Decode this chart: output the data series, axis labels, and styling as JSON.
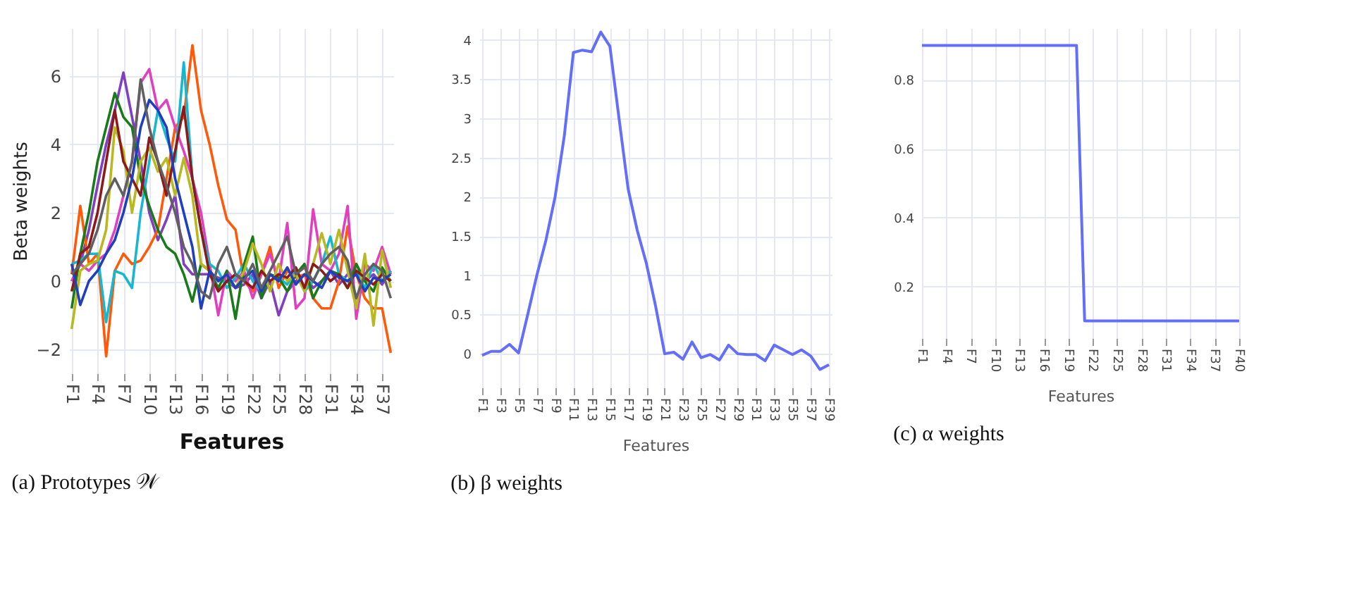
{
  "chart_data": [
    {
      "type": "line",
      "title": "(a) Prototypes 𝒲",
      "xlabel": "Features",
      "ylabel": "Beta weights",
      "grid": true,
      "ylim": [
        -2.7,
        7.4
      ],
      "yticks": [
        -2,
        0,
        2,
        4,
        6
      ],
      "categories": [
        "F1",
        null,
        null,
        "F4",
        null,
        null,
        "F7",
        null,
        null,
        "F10",
        null,
        null,
        "F13",
        null,
        null,
        "F16",
        null,
        null,
        "F19",
        null,
        null,
        "F22",
        null,
        null,
        "F25",
        null,
        null,
        "F28",
        null,
        null,
        "F31",
        null,
        null,
        "F34",
        null,
        null,
        "F37",
        null
      ],
      "series": [
        {
          "color": "#7f3fbf",
          "values": [
            0.0,
            0.5,
            1.5,
            2.8,
            4.0,
            5.0,
            6.1,
            4.8,
            3.5,
            2.0,
            1.2,
            1.8,
            2.5,
            0.5,
            0.2,
            0.2,
            0.2,
            0.1,
            0.0,
            -0.2,
            -0.1,
            0.2,
            -0.5,
            0.0,
            -1.0,
            -0.3,
            0.0,
            0.2,
            -0.2,
            0.0,
            0.3,
            -0.1,
            0.2,
            0.5,
            0.0,
            0.2,
            -0.1,
            0.3
          ]
        },
        {
          "color": "#ff5a0a",
          "values": [
            0.2,
            2.2,
            0.5,
            0.8,
            -2.2,
            0.3,
            0.8,
            0.5,
            0.6,
            1.0,
            1.5,
            3.0,
            4.5,
            4.8,
            6.9,
            5.0,
            4.0,
            2.8,
            1.8,
            1.5,
            0.0,
            -0.3,
            0.2,
            1.0,
            -0.2,
            0.3,
            0.1,
            0.2,
            -0.5,
            -0.8,
            -0.8,
            0.0,
            1.6,
            0.2,
            -0.5,
            -0.8,
            -0.8,
            -2.1
          ]
        },
        {
          "color": "#e040c0",
          "values": [
            0.0,
            0.5,
            0.3,
            0.6,
            0.8,
            1.5,
            2.5,
            3.5,
            5.8,
            6.2,
            5.0,
            5.3,
            4.5,
            3.8,
            3.0,
            2.0,
            0.5,
            -1.0,
            0.3,
            0.0,
            0.3,
            -0.5,
            0.2,
            0.8,
            0.0,
            1.7,
            -0.8,
            -0.5,
            2.1,
            0.5,
            0.3,
            0.8,
            2.2,
            -1.1,
            0.5,
            0.3,
            1.0,
            0.2
          ]
        },
        {
          "color": "#17b7cf",
          "values": [
            0.5,
            0.6,
            0.8,
            0.8,
            -1.2,
            0.3,
            0.2,
            -0.2,
            2.0,
            3.5,
            5.0,
            4.2,
            3.5,
            6.4,
            3.0,
            1.5,
            0.5,
            0.3,
            -0.2,
            0.1,
            0.5,
            0.0,
            -0.3,
            0.2,
            0.1,
            -0.1,
            0.3,
            -0.3,
            0.0,
            0.5,
            1.3,
            0.2,
            0.0,
            0.3,
            -0.2,
            0.5,
            0.0,
            0.3
          ]
        },
        {
          "color": "#1a7a1a",
          "values": [
            -0.8,
            0.8,
            2.0,
            3.5,
            4.5,
            5.5,
            4.8,
            4.5,
            3.0,
            2.2,
            1.5,
            1.0,
            0.8,
            0.2,
            -0.6,
            0.5,
            0.3,
            -0.2,
            0.3,
            -1.1,
            0.5,
            1.3,
            -0.5,
            0.2,
            0.1,
            -0.3,
            0.2,
            0.5,
            -0.5,
            0.0,
            0.3,
            0.2,
            -0.2,
            0.5,
            0.0,
            -0.3,
            0.4,
            0.0
          ]
        },
        {
          "color": "#b8b820",
          "values": [
            -1.4,
            0.3,
            0.5,
            0.6,
            1.5,
            4.5,
            3.8,
            2.0,
            3.5,
            3.9,
            3.2,
            3.6,
            2.5,
            3.6,
            2.5,
            0.5,
            0.3,
            0.0,
            0.2,
            -0.2,
            0.3,
            1.1,
            0.5,
            -0.3,
            0.5,
            0.0,
            0.2,
            -0.3,
            0.5,
            1.4,
            0.5,
            1.5,
            0.3,
            -0.8,
            0.8,
            -1.3,
            0.9,
            -0.2
          ]
        },
        {
          "color": "#8b1a1a",
          "values": [
            -0.3,
            0.8,
            1.0,
            2.0,
            3.5,
            5.0,
            3.5,
            3.0,
            2.5,
            4.2,
            3.5,
            2.5,
            3.8,
            5.1,
            3.0,
            1.5,
            0.2,
            -0.3,
            0.0,
            0.2,
            0.0,
            -0.2,
            0.3,
            0.0,
            0.2,
            0.1,
            0.4,
            -0.2,
            0.5,
            0.3,
            0.0,
            0.2,
            -0.2,
            0.3,
            0.1,
            -0.1,
            0.2,
            0.0
          ]
        },
        {
          "color": "#1f3fbf",
          "values": [
            0.5,
            -0.7,
            0.0,
            0.3,
            0.8,
            1.2,
            2.0,
            3.0,
            4.5,
            5.3,
            5.0,
            4.5,
            3.0,
            2.0,
            1.0,
            -0.8,
            0.3,
            0.0,
            0.2,
            -0.2,
            0.1,
            0.3,
            -0.3,
            0.2,
            0.0,
            0.4,
            -0.1,
            0.2,
            0.0,
            -0.2,
            0.3,
            0.1,
            0.0,
            0.2,
            -0.3,
            0.1,
            0.0,
            0.2
          ]
        },
        {
          "color": "#606060",
          "values": [
            0.2,
            0.5,
            0.8,
            1.5,
            2.5,
            3.0,
            2.5,
            3.5,
            5.9,
            4.5,
            3.5,
            2.8,
            2.0,
            1.0,
            0.5,
            -0.3,
            -0.5,
            0.5,
            1.0,
            0.2,
            0.0,
            0.5,
            -0.2,
            0.3,
            0.8,
            1.3,
            0.2,
            0.4,
            0.0,
            0.5,
            0.8,
            1.0,
            0.6,
            -0.5,
            0.2,
            0.5,
            0.3,
            -0.5
          ]
        }
      ]
    },
    {
      "type": "line",
      "title": "(b) β weights",
      "xlabel": "Features",
      "grid": true,
      "ylim": [
        -0.43,
        4.15
      ],
      "yticks": [
        0,
        0.5,
        1,
        1.5,
        2,
        2.5,
        3,
        3.5,
        4
      ],
      "categories": [
        "F1",
        null,
        "F3",
        null,
        "F5",
        null,
        "F7",
        null,
        "F9",
        null,
        "F11",
        null,
        "F13",
        null,
        "F15",
        null,
        "F17",
        null,
        "F19",
        null,
        "F21",
        null,
        "F23",
        null,
        "F25",
        null,
        "F27",
        null,
        "F29",
        null,
        "F31",
        null,
        "F33",
        null,
        "F35",
        null,
        "F37",
        null,
        "F39"
      ],
      "series": [
        {
          "color": "#636efa",
          "values": [
            -0.02,
            0.03,
            0.03,
            0.12,
            0.01,
            0.5,
            1.0,
            1.45,
            2.0,
            2.77,
            3.84,
            3.87,
            3.85,
            4.1,
            3.92,
            3.0,
            2.1,
            1.57,
            1.15,
            0.61,
            0.0,
            0.02,
            -0.07,
            0.15,
            -0.05,
            -0.01,
            -0.08,
            0.11,
            0.0,
            -0.01,
            -0.01,
            -0.09,
            0.11,
            0.05,
            -0.01,
            0.05,
            -0.03,
            -0.2,
            -0.14
          ]
        }
      ]
    },
    {
      "type": "line",
      "title": "(c) α weights",
      "xlabel": "Features",
      "grid": true,
      "ylim": [
        0.05,
        0.95
      ],
      "yticks": [
        0.2,
        0.4,
        0.6,
        0.8
      ],
      "categories": [
        "F1",
        null,
        null,
        "F4",
        null,
        null,
        "F7",
        null,
        null,
        "F10",
        null,
        null,
        "F13",
        null,
        null,
        "F16",
        null,
        null,
        "F19",
        null,
        null,
        "F22",
        null,
        null,
        "F25",
        null,
        null,
        "F28",
        null,
        null,
        "F31",
        null,
        null,
        "F34",
        null,
        null,
        "F37",
        null,
        null,
        "F40"
      ],
      "series": [
        {
          "color": "#636efa",
          "values": [
            0.9,
            0.9,
            0.9,
            0.9,
            0.9,
            0.9,
            0.9,
            0.9,
            0.9,
            0.9,
            0.9,
            0.9,
            0.9,
            0.9,
            0.9,
            0.9,
            0.9,
            0.9,
            0.9,
            0.9,
            0.1,
            0.1,
            0.1,
            0.1,
            0.1,
            0.1,
            0.1,
            0.1,
            0.1,
            0.1,
            0.1,
            0.1,
            0.1,
            0.1,
            0.1,
            0.1,
            0.1,
            0.1,
            0.1,
            0.1
          ]
        }
      ]
    }
  ]
}
